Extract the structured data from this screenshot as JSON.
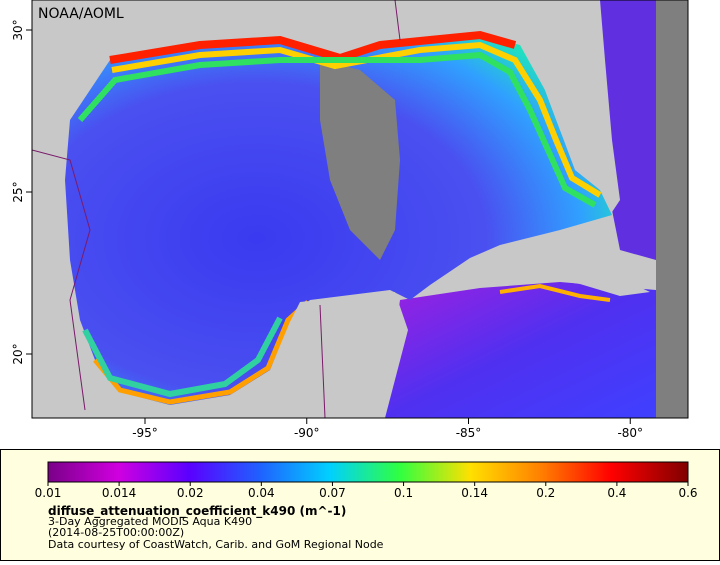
{
  "map": {
    "credit": "NOAA/AOML",
    "lat_ticks": [
      {
        "value": 30,
        "label": "30°"
      },
      {
        "value": 25,
        "label": "25°"
      },
      {
        "value": 20,
        "label": "20°"
      }
    ],
    "lon_ticks": [
      {
        "value": -95,
        "label": "-95°"
      },
      {
        "value": -90,
        "label": "-90°"
      },
      {
        "value": -85,
        "label": "-85°"
      },
      {
        "value": -80,
        "label": "-80°"
      }
    ]
  },
  "legend": {
    "ticks": [
      0.01,
      0.014,
      0.02,
      0.04,
      0.07,
      0.1,
      0.14,
      0.2,
      0.4,
      0.6
    ],
    "title": "diffuse_attenuation_coefficient_k490 (m^-1)",
    "subtitle": "3-Day Aggregated MODIS Aqua K490",
    "date": "(2014-08-25T00:00:00Z)",
    "source": "Data courtesy of CoastWatch, Carib. and GoM Regional Node"
  }
}
